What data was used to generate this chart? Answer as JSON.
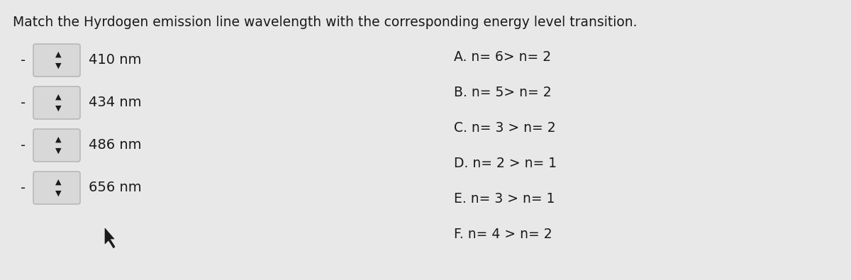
{
  "title": "Match the Hyrdogen emission line wavelength with the corresponding energy level transition.",
  "title_fontsize": 13.5,
  "background_color": "#e8e8e8",
  "wavelengths": [
    "410 nm",
    "434 nm",
    "486 nm",
    "656 nm"
  ],
  "options": [
    "A. n= 6> n= 2",
    "B. n= 5> n= 2",
    "C. n= 3 > n= 2",
    "D. n= 2 > n= 1",
    "E. n= 3 > n= 1",
    "F. n= 4 > n= 2"
  ],
  "text_color": "#1a1a1a",
  "box_color": "#d8d8d8",
  "box_edge_color": "#b0b0b0"
}
